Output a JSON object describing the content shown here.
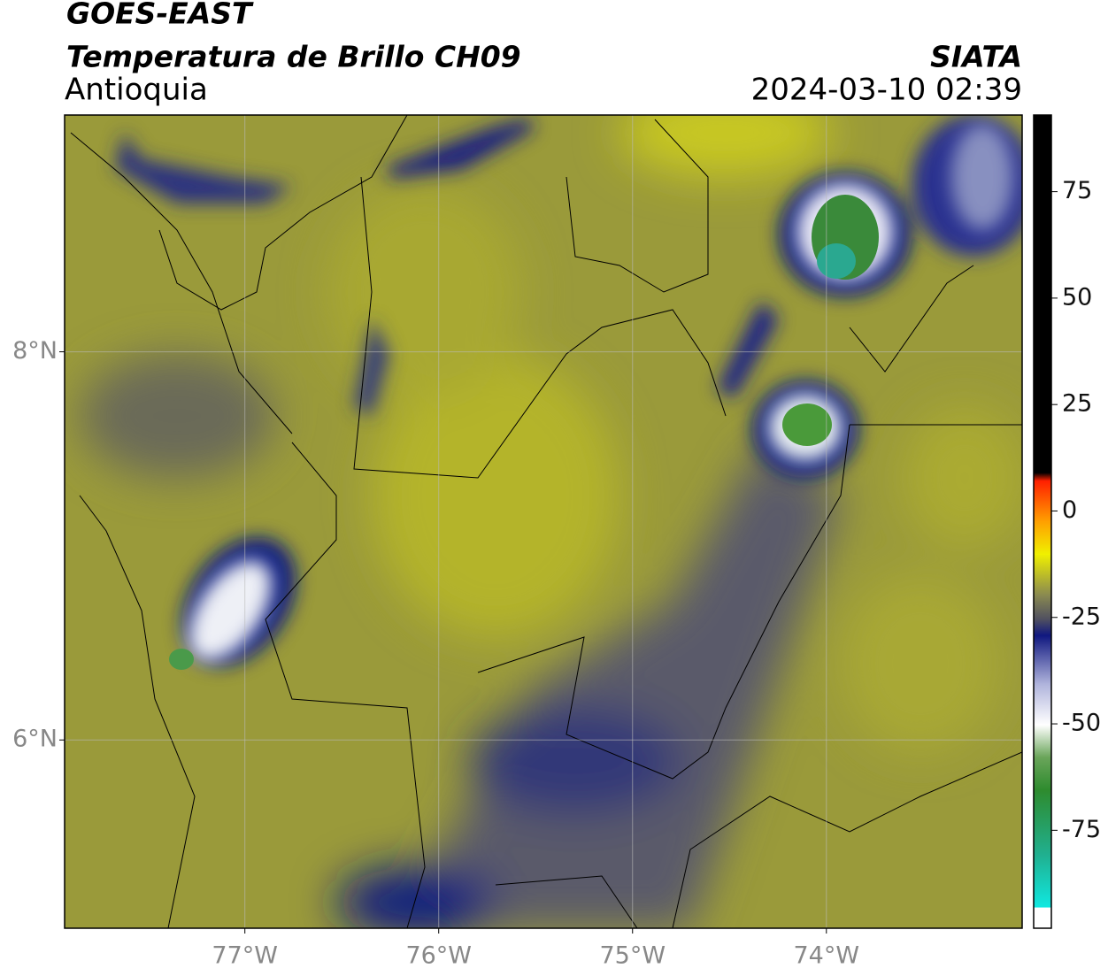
{
  "header": {
    "satellite": "GOES-EAST",
    "product": "Temperatura de Brillo CH09",
    "region": "Antioquia",
    "source": "SIATA",
    "datetime": "2024-03-10 02:39"
  },
  "map": {
    "xlim": [
      -77.93,
      -72.99
    ],
    "ylim": [
      5.03,
      9.22
    ],
    "xticks": [
      {
        "value": -77,
        "label": "77°W"
      },
      {
        "value": -76,
        "label": "76°W"
      },
      {
        "value": -75,
        "label": "75°W"
      },
      {
        "value": -74,
        "label": "74°W"
      }
    ],
    "yticks": [
      {
        "value": 8,
        "label": "8°N"
      },
      {
        "value": 6,
        "label": "6°N"
      }
    ]
  },
  "colorbar": {
    "lim": [
      -98,
      93
    ],
    "ticks": [
      75,
      50,
      25,
      0,
      -25,
      -50,
      -75
    ]
  }
}
